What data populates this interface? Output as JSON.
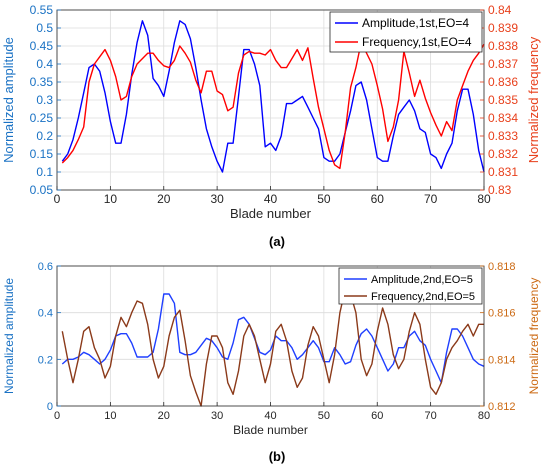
{
  "chart_data": [
    {
      "type": "line",
      "caption": "(a)",
      "xlabel": "Blade number",
      "ylabel_left": "Normalized amplitude",
      "ylabel_right": "Normalized frequency",
      "xlim": [
        0,
        80
      ],
      "ylim_left": [
        0.05,
        0.55
      ],
      "ylim_right": [
        0.83,
        0.84
      ],
      "x_ticks": [
        "0",
        "10",
        "20",
        "30",
        "40",
        "50",
        "60",
        "70",
        "80"
      ],
      "y_ticks_left": [
        "0.05",
        "0.1",
        "0.15",
        "0.2",
        "0.25",
        "0.3",
        "0.35",
        "0.4",
        "0.45",
        "0.5",
        "0.55"
      ],
      "y_ticks_right": [
        "0.83",
        "0.831",
        "0.832",
        "0.833",
        "0.834",
        "0.835",
        "0.836",
        "0.837",
        "0.838",
        "0.839",
        "0.84"
      ],
      "grid": true,
      "legend_position": "top-right",
      "series": [
        {
          "name": "Amplitude,1st,EO=4",
          "axis": "left",
          "color": "#0000ff",
          "x": [
            1,
            2,
            3,
            4,
            5,
            6,
            7,
            8,
            9,
            10,
            11,
            12,
            13,
            14,
            15,
            16,
            17,
            18,
            19,
            20,
            21,
            22,
            23,
            24,
            25,
            26,
            27,
            28,
            29,
            30,
            31,
            32,
            33,
            34,
            35,
            36,
            37,
            38,
            39,
            40,
            41,
            42,
            43,
            44,
            45,
            46,
            47,
            48,
            49,
            50,
            51,
            52,
            53,
            54,
            55,
            56,
            57,
            58,
            59,
            60,
            61,
            62,
            63,
            64,
            65,
            66,
            67,
            68,
            69,
            70,
            71,
            72,
            73,
            74,
            75,
            76,
            77,
            78,
            79,
            80
          ],
          "values": [
            0.13,
            0.15,
            0.19,
            0.25,
            0.32,
            0.39,
            0.4,
            0.38,
            0.32,
            0.24,
            0.18,
            0.18,
            0.26,
            0.37,
            0.46,
            0.52,
            0.48,
            0.36,
            0.34,
            0.31,
            0.38,
            0.46,
            0.52,
            0.51,
            0.47,
            0.39,
            0.3,
            0.22,
            0.17,
            0.13,
            0.1,
            0.18,
            0.18,
            0.31,
            0.44,
            0.44,
            0.4,
            0.34,
            0.17,
            0.18,
            0.16,
            0.2,
            0.29,
            0.29,
            0.3,
            0.31,
            0.28,
            0.25,
            0.22,
            0.14,
            0.13,
            0.13,
            0.15,
            0.21,
            0.27,
            0.34,
            0.35,
            0.3,
            0.22,
            0.14,
            0.13,
            0.13,
            0.2,
            0.26,
            0.28,
            0.3,
            0.27,
            0.22,
            0.21,
            0.15,
            0.14,
            0.11,
            0.15,
            0.18,
            0.27,
            0.33,
            0.33,
            0.26,
            0.16,
            0.1
          ]
        },
        {
          "name": "Frequency,1st,EO=4",
          "axis": "right",
          "color": "#ff0000",
          "x": [
            1,
            2,
            3,
            4,
            5,
            6,
            7,
            8,
            9,
            10,
            11,
            12,
            13,
            14,
            15,
            16,
            17,
            18,
            19,
            20,
            21,
            22,
            23,
            24,
            25,
            26,
            27,
            28,
            29,
            30,
            31,
            32,
            33,
            34,
            35,
            36,
            37,
            38,
            39,
            40,
            41,
            42,
            43,
            44,
            45,
            46,
            47,
            48,
            49,
            50,
            51,
            52,
            53,
            54,
            55,
            56,
            57,
            58,
            59,
            60,
            61,
            62,
            63,
            64,
            65,
            66,
            67,
            68,
            69,
            70,
            71,
            72,
            73,
            74,
            75,
            76,
            77,
            78,
            79,
            80
          ],
          "values": [
            0.8315,
            0.8318,
            0.8322,
            0.8328,
            0.8335,
            0.836,
            0.837,
            0.8374,
            0.8378,
            0.8372,
            0.8363,
            0.835,
            0.8352,
            0.8363,
            0.837,
            0.8373,
            0.8376,
            0.8376,
            0.8372,
            0.8369,
            0.8368,
            0.8372,
            0.838,
            0.8376,
            0.8371,
            0.8361,
            0.8354,
            0.8366,
            0.8366,
            0.8355,
            0.8353,
            0.8344,
            0.8346,
            0.8365,
            0.8375,
            0.8377,
            0.8376,
            0.8376,
            0.8375,
            0.8378,
            0.8372,
            0.8368,
            0.8368,
            0.8373,
            0.8378,
            0.8372,
            0.8379,
            0.8362,
            0.8346,
            0.8334,
            0.8322,
            0.8314,
            0.8312,
            0.8332,
            0.8357,
            0.8368,
            0.8382,
            0.8376,
            0.837,
            0.8358,
            0.8345,
            0.8327,
            0.8335,
            0.835,
            0.8377,
            0.8365,
            0.8352,
            0.8361,
            0.8351,
            0.8343,
            0.8336,
            0.833,
            0.8338,
            0.8333,
            0.835,
            0.8358,
            0.8366,
            0.8372,
            0.8376,
            0.8381
          ]
        }
      ]
    },
    {
      "type": "line",
      "caption": "(b)",
      "xlabel": "Blade number",
      "ylabel_left": "Normalized amplitude",
      "ylabel_right": "Normalized frequency",
      "xlim": [
        0,
        80
      ],
      "ylim_left": [
        0,
        0.6
      ],
      "ylim_right": [
        0.812,
        0.818
      ],
      "x_ticks": [
        "0",
        "10",
        "20",
        "30",
        "40",
        "50",
        "60",
        "70",
        "80"
      ],
      "y_ticks_left": [
        "0",
        "0.2",
        "0.4",
        "0.6"
      ],
      "y_ticks_right": [
        "0.812",
        "0.814",
        "0.816",
        "0.818"
      ],
      "grid": true,
      "legend_position": "top-right",
      "series": [
        {
          "name": "Amplitude,2nd,EO=5",
          "axis": "left",
          "color": "#1f3fff",
          "x": [
            1,
            2,
            3,
            4,
            5,
            6,
            7,
            8,
            9,
            10,
            11,
            12,
            13,
            14,
            15,
            16,
            17,
            18,
            19,
            20,
            21,
            22,
            23,
            24,
            25,
            26,
            27,
            28,
            29,
            30,
            31,
            32,
            33,
            34,
            35,
            36,
            37,
            38,
            39,
            40,
            41,
            42,
            43,
            44,
            45,
            46,
            47,
            48,
            49,
            50,
            51,
            52,
            53,
            54,
            55,
            56,
            57,
            58,
            59,
            60,
            61,
            62,
            63,
            64,
            65,
            66,
            67,
            68,
            69,
            70,
            71,
            72,
            73,
            74,
            75,
            76,
            77,
            78,
            79,
            80
          ],
          "values": [
            0.18,
            0.2,
            0.2,
            0.21,
            0.23,
            0.22,
            0.2,
            0.18,
            0.2,
            0.24,
            0.3,
            0.31,
            0.31,
            0.27,
            0.21,
            0.21,
            0.21,
            0.23,
            0.33,
            0.48,
            0.48,
            0.44,
            0.23,
            0.22,
            0.22,
            0.23,
            0.26,
            0.29,
            0.28,
            0.25,
            0.21,
            0.2,
            0.27,
            0.37,
            0.38,
            0.35,
            0.29,
            0.23,
            0.22,
            0.24,
            0.3,
            0.28,
            0.28,
            0.25,
            0.2,
            0.22,
            0.25,
            0.28,
            0.25,
            0.19,
            0.19,
            0.25,
            0.22,
            0.18,
            0.19,
            0.26,
            0.31,
            0.33,
            0.3,
            0.25,
            0.2,
            0.15,
            0.18,
            0.25,
            0.25,
            0.3,
            0.32,
            0.28,
            0.26,
            0.2,
            0.15,
            0.1,
            0.23,
            0.33,
            0.33,
            0.3,
            0.25,
            0.2,
            0.18,
            0.17
          ]
        },
        {
          "name": "Frequency,2nd,EO=5",
          "axis": "right",
          "color": "#8b3a1a",
          "x": [
            1,
            2,
            3,
            4,
            5,
            6,
            7,
            8,
            9,
            10,
            11,
            12,
            13,
            14,
            15,
            16,
            17,
            18,
            19,
            20,
            21,
            22,
            23,
            24,
            25,
            26,
            27,
            28,
            29,
            30,
            31,
            32,
            33,
            34,
            35,
            36,
            37,
            38,
            39,
            40,
            41,
            42,
            43,
            44,
            45,
            46,
            47,
            48,
            49,
            50,
            51,
            52,
            53,
            54,
            55,
            56,
            57,
            58,
            59,
            60,
            61,
            62,
            63,
            64,
            65,
            66,
            67,
            68,
            69,
            70,
            71,
            72,
            73,
            74,
            75,
            76,
            77,
            78,
            79,
            80
          ],
          "values": [
            0.8152,
            0.814,
            0.813,
            0.814,
            0.8152,
            0.8154,
            0.8145,
            0.814,
            0.8132,
            0.8137,
            0.815,
            0.8158,
            0.8154,
            0.816,
            0.8165,
            0.8164,
            0.8155,
            0.814,
            0.8132,
            0.8137,
            0.815,
            0.8158,
            0.8161,
            0.8148,
            0.8133,
            0.8126,
            0.812,
            0.8138,
            0.815,
            0.815,
            0.8145,
            0.813,
            0.8125,
            0.8135,
            0.815,
            0.8155,
            0.815,
            0.814,
            0.813,
            0.8138,
            0.8152,
            0.8155,
            0.8148,
            0.8135,
            0.8128,
            0.8132,
            0.8146,
            0.8154,
            0.815,
            0.814,
            0.813,
            0.8142,
            0.816,
            0.817,
            0.8168,
            0.816,
            0.814,
            0.8133,
            0.8138,
            0.8152,
            0.8162,
            0.8155,
            0.8142,
            0.8136,
            0.814,
            0.8152,
            0.816,
            0.8155,
            0.814,
            0.8128,
            0.8125,
            0.813,
            0.814,
            0.8145,
            0.8148,
            0.8152,
            0.8155,
            0.815,
            0.8155,
            0.8155
          ]
        }
      ]
    }
  ]
}
